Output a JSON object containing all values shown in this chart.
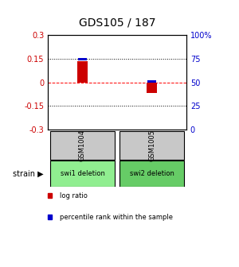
{
  "title": "GDS105 / 187",
  "samples": [
    "GSM1004",
    "GSM1005"
  ],
  "log_ratios": [
    0.135,
    -0.07
  ],
  "percentile_ranks": [
    0.74,
    0.51
  ],
  "strain_labels": [
    "swi1 deletion",
    "swi2 deletion"
  ],
  "ylim_left": [
    -0.3,
    0.3
  ],
  "ylim_right": [
    0,
    1.0
  ],
  "yticks_left": [
    -0.3,
    -0.15,
    0,
    0.15,
    0.3
  ],
  "ytick_labels_left": [
    "-0.3",
    "-0.15",
    "0",
    "0.15",
    "0.3"
  ],
  "yticks_right": [
    0,
    0.25,
    0.5,
    0.75,
    1.0
  ],
  "ytick_labels_right": [
    "0",
    "25",
    "50",
    "75",
    "100%"
  ],
  "hlines": [
    0.15,
    0.0,
    -0.15
  ],
  "hline_styles": [
    "dotted",
    "dashed",
    "dotted"
  ],
  "hline_colors": [
    "black",
    "red",
    "black"
  ],
  "bar_color_log": "#cc0000",
  "bar_color_pct": "#0000cc",
  "bar_width": 0.08,
  "pct_bar_width": 0.06,
  "pct_bar_height": 0.025,
  "gray_color": "#c8c8c8",
  "green_color": "#90ee90",
  "green_color2": "#66cc66",
  "legend_log_label": "log ratio",
  "legend_pct_label": "percentile rank within the sample",
  "strain_row_label": "strain",
  "background_color": "#ffffff",
  "left_label_color": "#cc0000",
  "right_label_color": "#0000cc",
  "title_fontsize": 10
}
